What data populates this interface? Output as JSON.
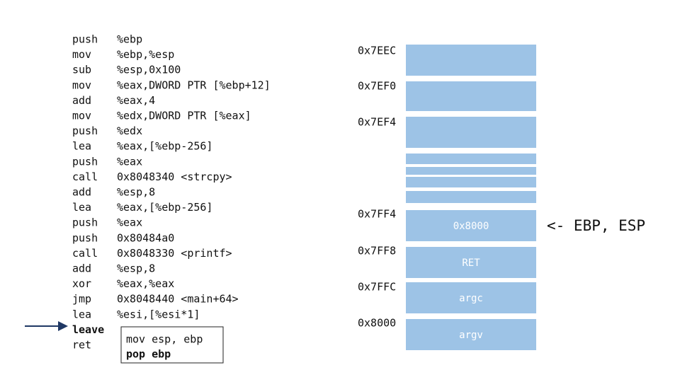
{
  "code": {
    "instructions": [
      {
        "mnemonic": "push",
        "operand": "%ebp"
      },
      {
        "mnemonic": "mov",
        "operand": "%ebp,%esp"
      },
      {
        "mnemonic": "sub",
        "operand": "%esp,0x100"
      },
      {
        "mnemonic": "mov",
        "operand": "%eax,DWORD PTR [%ebp+12]"
      },
      {
        "mnemonic": "add",
        "operand": "%eax,4"
      },
      {
        "mnemonic": "mov",
        "operand": "%edx,DWORD PTR [%eax]"
      },
      {
        "mnemonic": "push",
        "operand": "%edx"
      },
      {
        "mnemonic": "lea",
        "operand": "%eax,[%ebp-256]"
      },
      {
        "mnemonic": "push",
        "operand": "%eax"
      },
      {
        "mnemonic": "call",
        "operand": "0x8048340 <strcpy>"
      },
      {
        "mnemonic": "add",
        "operand": "%esp,8"
      },
      {
        "mnemonic": "lea",
        "operand": "%eax,[%ebp-256]"
      },
      {
        "mnemonic": "push",
        "operand": "%eax"
      },
      {
        "mnemonic": "push",
        "operand": "0x80484a0"
      },
      {
        "mnemonic": "call",
        "operand": "0x8048330 <printf>"
      },
      {
        "mnemonic": "add",
        "operand": "%esp,8"
      },
      {
        "mnemonic": "xor",
        "operand": "%eax,%eax"
      },
      {
        "mnemonic": "jmp",
        "operand": "0x8048440 <main+64>"
      },
      {
        "mnemonic": "lea",
        "operand": "%esi,[%esi*1]"
      },
      {
        "mnemonic": "leave"
      },
      {
        "mnemonic": "ret"
      }
    ],
    "note": [
      "mov esp, ebp",
      "pop ebp"
    ]
  },
  "stack": {
    "addresses": [
      "0x7EEC",
      "0x7EF0",
      "0x7EF4",
      "0x7FF4",
      "0x7FF8",
      "0x7FFC",
      "0x8000"
    ],
    "cells": [
      "0x8000",
      "RET",
      "argc",
      "argv"
    ],
    "pointer_label": "<- EBP, ESP"
  }
}
